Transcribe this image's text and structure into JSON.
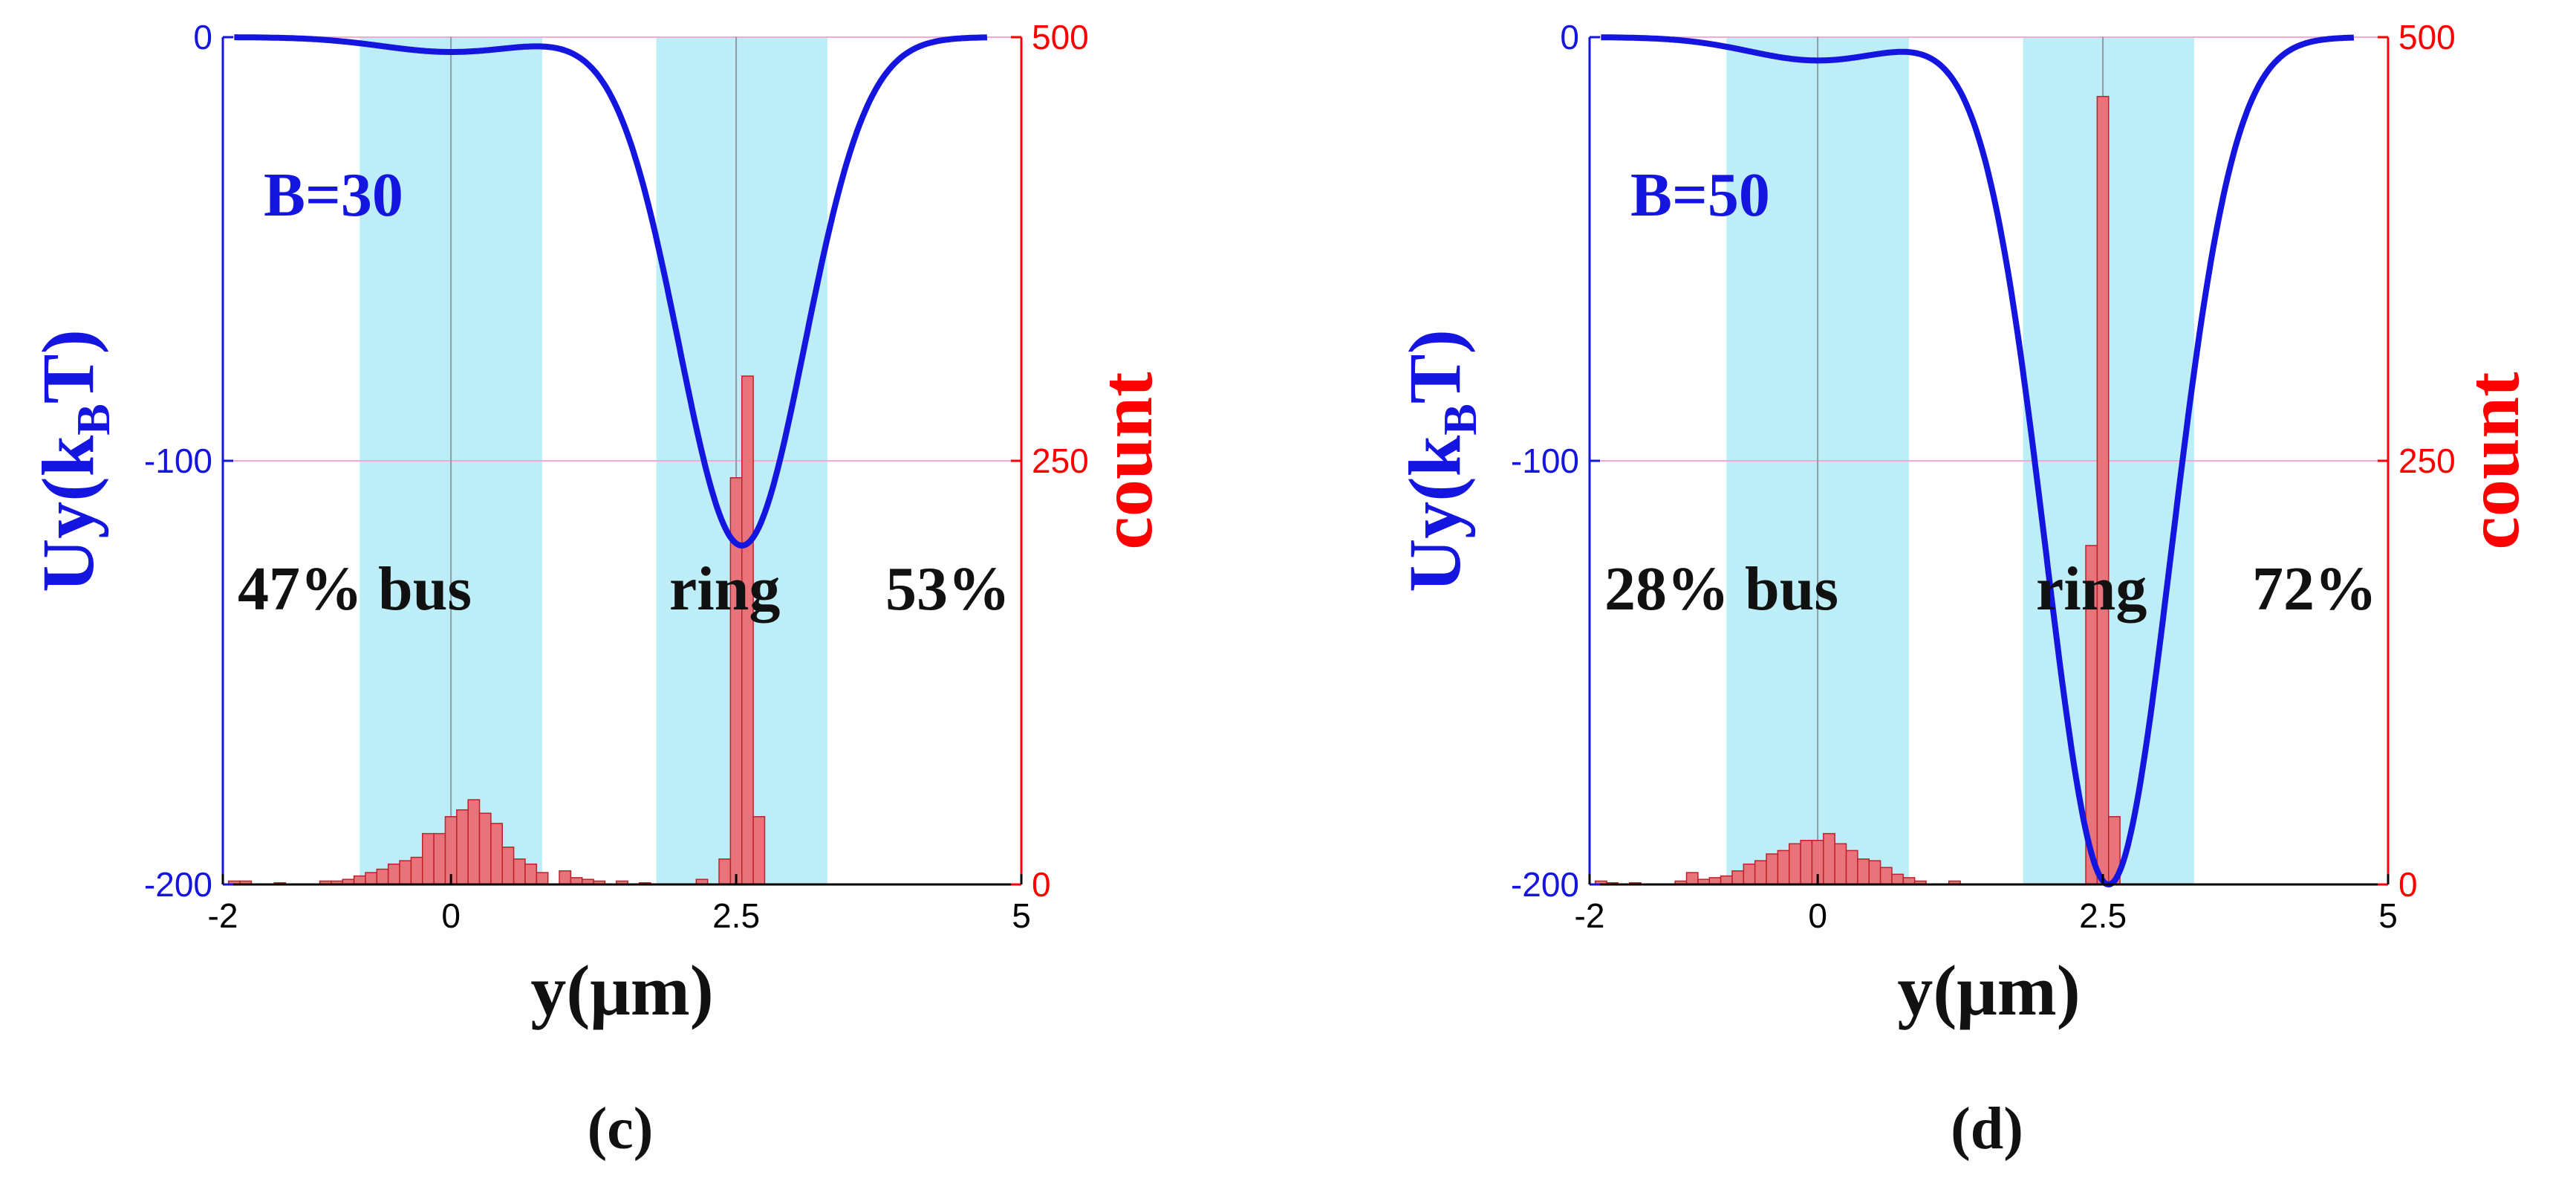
{
  "chart_data": [
    {
      "type": "line+histogram",
      "panel_label": "(c)",
      "annotation_B": "B=30",
      "text_bus": "47% bus",
      "text_ring": "ring",
      "text_ring_pct": "53%",
      "xlabel": "y(μm)",
      "ylabel_left": "Uy(k",
      "ylabel_left_sub": "B",
      "ylabel_left_end": "T)",
      "ylabel_right": "count",
      "xlim": [
        -2,
        5
      ],
      "ylim_left": [
        -200,
        0
      ],
      "ylim_right": [
        0,
        500
      ],
      "x_ticks": [
        "-2",
        "0",
        "2.5",
        "5"
      ],
      "x_tick_values": [
        -2,
        0,
        2.5,
        5
      ],
      "y_left_ticks": [
        "0",
        "-100",
        "-200"
      ],
      "y_left_tick_values": [
        0,
        -100,
        -200
      ],
      "y_right_ticks": [
        "500",
        "250",
        "0"
      ],
      "y_right_tick_values": [
        500,
        250,
        0
      ],
      "shaded_regions": [
        [
          -0.8,
          0.8
        ],
        [
          1.8,
          3.3
        ]
      ],
      "vertical_lines": [
        0,
        2.5
      ],
      "potential": {
        "depth": 120,
        "ring_center": 2.55,
        "ring_sigma": 0.55,
        "bus_depth": 3.5,
        "bus_sigma": 0.6
      },
      "histogram": {
        "bin_width": 0.1,
        "bins": [
          {
            "x": -1.9,
            "count": 2
          },
          {
            "x": -1.8,
            "count": 2
          },
          {
            "x": -1.5,
            "count": 1
          },
          {
            "x": -1.1,
            "count": 2
          },
          {
            "x": -1.0,
            "count": 2
          },
          {
            "x": -0.9,
            "count": 3
          },
          {
            "x": -0.8,
            "count": 5
          },
          {
            "x": -0.7,
            "count": 7
          },
          {
            "x": -0.6,
            "count": 9
          },
          {
            "x": -0.5,
            "count": 12
          },
          {
            "x": -0.4,
            "count": 14
          },
          {
            "x": -0.3,
            "count": 16
          },
          {
            "x": -0.2,
            "count": 30
          },
          {
            "x": -0.1,
            "count": 30
          },
          {
            "x": 0.0,
            "count": 40
          },
          {
            "x": 0.1,
            "count": 44
          },
          {
            "x": 0.2,
            "count": 50
          },
          {
            "x": 0.3,
            "count": 42
          },
          {
            "x": 0.4,
            "count": 36
          },
          {
            "x": 0.5,
            "count": 22
          },
          {
            "x": 0.6,
            "count": 15
          },
          {
            "x": 0.7,
            "count": 12
          },
          {
            "x": 0.8,
            "count": 7
          },
          {
            "x": 1.0,
            "count": 8
          },
          {
            "x": 1.1,
            "count": 4
          },
          {
            "x": 1.2,
            "count": 3
          },
          {
            "x": 1.3,
            "count": 2
          },
          {
            "x": 1.5,
            "count": 2
          },
          {
            "x": 1.7,
            "count": 1
          },
          {
            "x": 2.2,
            "count": 3
          },
          {
            "x": 2.4,
            "count": 15
          },
          {
            "x": 2.5,
            "count": 240
          },
          {
            "x": 2.6,
            "count": 300
          },
          {
            "x": 2.7,
            "count": 40
          }
        ]
      }
    },
    {
      "type": "line+histogram",
      "panel_label": "(d)",
      "annotation_B": "B=50",
      "text_bus": "28% bus",
      "text_ring": "ring",
      "text_ring_pct": "72%",
      "xlabel": "y(μm)",
      "ylabel_left": "Uy(k",
      "ylabel_left_sub": "B",
      "ylabel_left_end": "T)",
      "ylabel_right": "count",
      "xlim": [
        -2,
        5
      ],
      "ylim_left": [
        -200,
        0
      ],
      "ylim_right": [
        0,
        500
      ],
      "x_ticks": [
        "-2",
        "0",
        "2.5",
        "5"
      ],
      "x_tick_values": [
        -2,
        0,
        2.5,
        5
      ],
      "y_left_ticks": [
        "0",
        "-100",
        "-200"
      ],
      "y_left_tick_values": [
        0,
        -100,
        -200
      ],
      "y_right_ticks": [
        "500",
        "250",
        "0"
      ],
      "y_right_tick_values": [
        500,
        250,
        0
      ],
      "shaded_regions": [
        [
          -0.8,
          0.8
        ],
        [
          1.8,
          3.3
        ]
      ],
      "vertical_lines": [
        0,
        2.5
      ],
      "potential": {
        "depth": 200,
        "ring_center": 2.55,
        "ring_sigma": 0.55,
        "bus_depth": 5.5,
        "bus_sigma": 0.6
      },
      "histogram": {
        "bin_width": 0.1,
        "bins": [
          {
            "x": -1.9,
            "count": 2
          },
          {
            "x": -1.8,
            "count": 1
          },
          {
            "x": -1.6,
            "count": 1
          },
          {
            "x": -1.2,
            "count": 2
          },
          {
            "x": -1.1,
            "count": 7
          },
          {
            "x": -1.0,
            "count": 3
          },
          {
            "x": -0.9,
            "count": 4
          },
          {
            "x": -0.8,
            "count": 5
          },
          {
            "x": -0.7,
            "count": 8
          },
          {
            "x": -0.6,
            "count": 12
          },
          {
            "x": -0.5,
            "count": 14
          },
          {
            "x": -0.4,
            "count": 18
          },
          {
            "x": -0.3,
            "count": 20
          },
          {
            "x": -0.2,
            "count": 24
          },
          {
            "x": -0.1,
            "count": 26
          },
          {
            "x": 0.0,
            "count": 26
          },
          {
            "x": 0.1,
            "count": 30
          },
          {
            "x": 0.2,
            "count": 24
          },
          {
            "x": 0.3,
            "count": 20
          },
          {
            "x": 0.4,
            "count": 15
          },
          {
            "x": 0.5,
            "count": 14
          },
          {
            "x": 0.6,
            "count": 10
          },
          {
            "x": 0.7,
            "count": 6
          },
          {
            "x": 0.8,
            "count": 4
          },
          {
            "x": 0.9,
            "count": 2
          },
          {
            "x": 1.2,
            "count": 2
          },
          {
            "x": 2.4,
            "count": 200
          },
          {
            "x": 2.5,
            "count": 465
          },
          {
            "x": 2.6,
            "count": 40
          }
        ]
      }
    }
  ],
  "colors": {
    "curve": "#1515e0",
    "left_axis": "#1515e0",
    "right_axis": "#ff0000",
    "hist_fill": "#e8737b",
    "hist_edge": "#c0202a",
    "shade": "#bdeef8",
    "grid": "#f4a8d8",
    "vline": "#8c9aa8",
    "text": "#111111"
  }
}
